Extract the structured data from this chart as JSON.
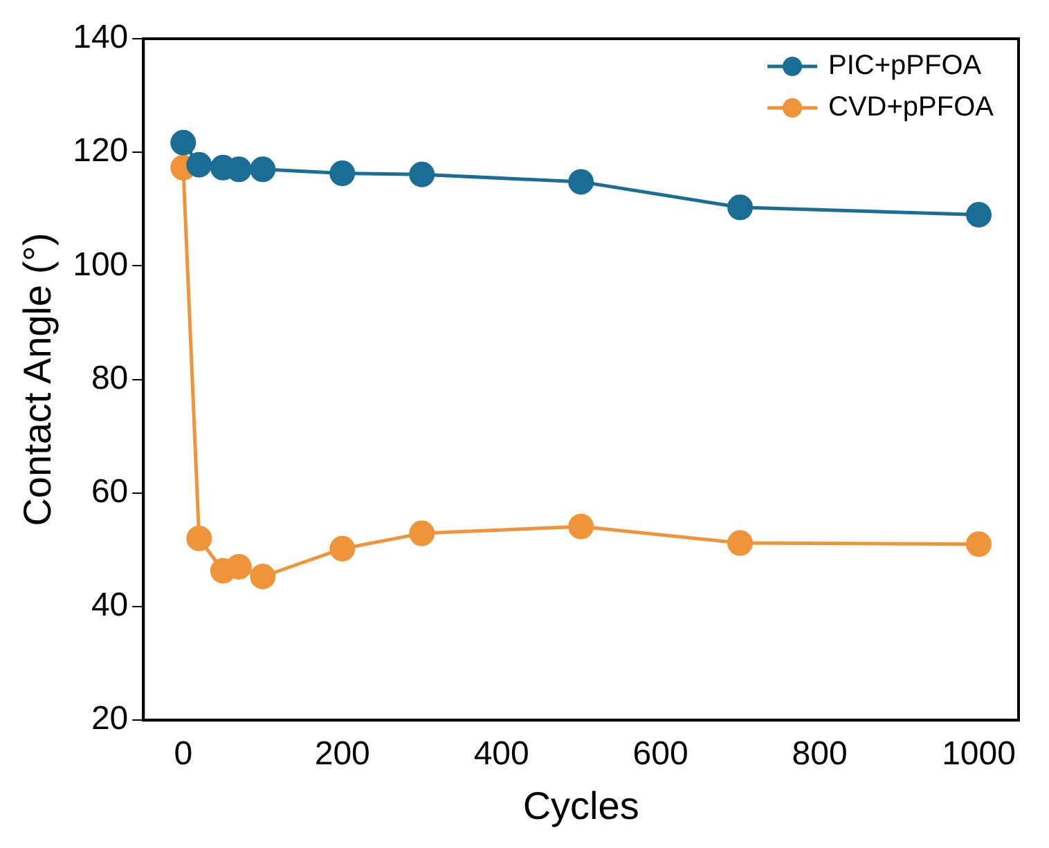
{
  "chart_data": {
    "type": "line",
    "xlabel": "Cycles",
    "ylabel": "Contact Angle (°)",
    "x": [
      0,
      20,
      50,
      70,
      100,
      200,
      300,
      500,
      700,
      1000
    ],
    "series": [
      {
        "name": "PIC+pPFOA",
        "color": "#1a6e96",
        "values": [
          121.7,
          117.8,
          117.3,
          117,
          117,
          116.3,
          116.1,
          114.8,
          110.3,
          109
        ]
      },
      {
        "name": "CVD+pPFOA",
        "color": "#f0943a",
        "values": [
          117.3,
          52,
          46.3,
          47,
          45.3,
          50.2,
          52.9,
          54.1,
          51.2,
          51
        ]
      }
    ],
    "xlim": [
      -50,
      1050
    ],
    "xticks": [
      0,
      200,
      400,
      600,
      800,
      1000
    ],
    "ylim": [
      20,
      140
    ],
    "yticks": [
      20,
      40,
      60,
      80,
      100,
      120,
      140
    ],
    "grid": false,
    "legend": "top right",
    "marker": "circle",
    "line_style": "solid"
  }
}
